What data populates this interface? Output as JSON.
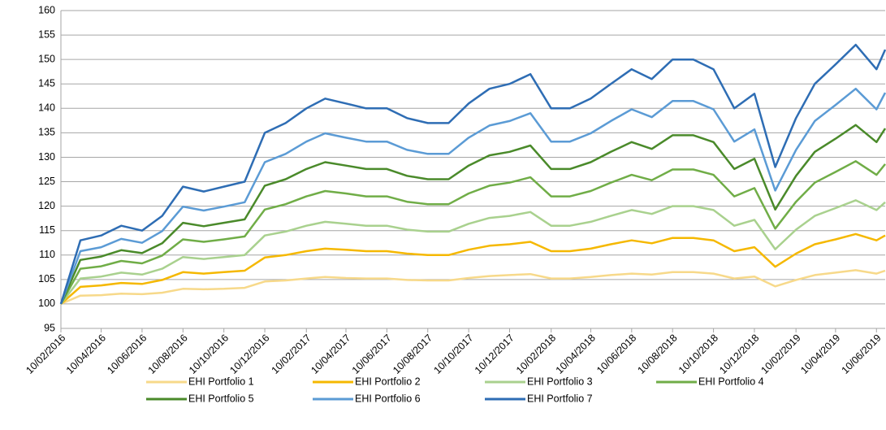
{
  "chart_data": {
    "type": "line",
    "x": [
      "10/02/2016",
      "10/03/2016",
      "10/04/2016",
      "10/05/2016",
      "10/06/2016",
      "10/07/2016",
      "10/08/2016",
      "10/09/2016",
      "10/10/2016",
      "10/11/2016",
      "10/12/2016",
      "10/01/2017",
      "10/02/2017",
      "10/03/2017",
      "10/04/2017",
      "10/05/2017",
      "10/06/2017",
      "10/07/2017",
      "10/08/2017",
      "10/09/2017",
      "10/10/2017",
      "10/11/2017",
      "10/12/2017",
      "10/01/2018",
      "10/02/2018",
      "10/03/2018",
      "10/04/2018",
      "10/05/2018",
      "10/06/2018",
      "10/07/2018",
      "10/08/2018",
      "10/09/2018",
      "10/10/2018",
      "10/11/2018",
      "10/12/2018",
      "10/01/2019",
      "10/02/2019",
      "10/03/2019",
      "10/04/2019",
      "10/05/2019",
      "10/06/2019",
      "23/06/2019"
    ],
    "series": [
      {
        "name": "EHI Portfolio 1",
        "color": "#f7d98a",
        "values": [
          100,
          101.7,
          101.8,
          102.1,
          102,
          102.3,
          103.1,
          103,
          103.1,
          103.3,
          104.6,
          104.8,
          105.2,
          105.5,
          105.3,
          105.2,
          105.2,
          104.9,
          104.8,
          104.8,
          105.3,
          105.7,
          105.9,
          106.1,
          105.2,
          105.2,
          105.5,
          105.9,
          106.2,
          106,
          106.5,
          106.5,
          106.2,
          105.2,
          105.6,
          103.6,
          104.9,
          105.9,
          106.4,
          106.9,
          106.2,
          106.8
        ]
      },
      {
        "name": "EHI Portfolio 2",
        "color": "#f5b800",
        "values": [
          100,
          103.5,
          103.8,
          104.3,
          104.1,
          104.9,
          106.5,
          106.2,
          106.5,
          106.8,
          109.5,
          110,
          110.8,
          111.3,
          111.1,
          110.8,
          110.8,
          110.3,
          110,
          110,
          111.1,
          111.9,
          112.2,
          112.7,
          110.8,
          110.8,
          111.3,
          112.2,
          113,
          112.4,
          113.5,
          113.5,
          113,
          110.8,
          111.6,
          107.6,
          110.3,
          112.2,
          113.2,
          114.3,
          113,
          114
        ]
      },
      {
        "name": "EHI Portfolio 3",
        "color": "#a9d18e",
        "values": [
          100,
          105.2,
          105.6,
          106.4,
          106,
          107.2,
          109.6,
          109.2,
          109.6,
          110,
          114,
          114.8,
          116,
          116.8,
          116.4,
          116,
          116,
          115.2,
          114.8,
          114.8,
          116.4,
          117.6,
          118,
          118.8,
          116,
          116,
          116.8,
          118,
          119.2,
          118.4,
          120,
          120,
          119.2,
          116,
          117.2,
          111.2,
          115.2,
          118,
          119.6,
          121.2,
          119.2,
          120.8
        ]
      },
      {
        "name": "EHI Portfolio 4",
        "color": "#70ad47",
        "values": [
          100,
          107.2,
          107.7,
          108.8,
          108.3,
          109.9,
          113.2,
          112.7,
          113.2,
          113.8,
          119.3,
          120.4,
          122,
          123.1,
          122.6,
          122,
          122,
          120.9,
          120.4,
          120.4,
          122.6,
          124.2,
          124.8,
          125.9,
          122,
          122,
          123.1,
          124.8,
          126.4,
          125.3,
          127.5,
          127.5,
          126.4,
          122,
          123.7,
          115.4,
          120.9,
          124.8,
          127,
          129.2,
          126.4,
          128.6
        ]
      },
      {
        "name": "EHI Portfolio 5",
        "color": "#4a8a2a",
        "values": [
          100,
          109,
          109.7,
          111,
          110.4,
          112.4,
          116.6,
          115.9,
          116.6,
          117.3,
          124.2,
          125.5,
          127.6,
          129,
          128.3,
          127.6,
          127.6,
          126.2,
          125.5,
          125.5,
          128.3,
          130.4,
          131.1,
          132.4,
          127.6,
          127.6,
          129,
          131.1,
          133.1,
          131.7,
          134.5,
          134.5,
          133.1,
          127.6,
          129.7,
          119.3,
          126.2,
          131.1,
          133.8,
          136.6,
          133.1,
          135.9
        ]
      },
      {
        "name": "EHI Portfolio 6",
        "color": "#5b9bd5",
        "values": [
          100,
          110.8,
          111.6,
          113.3,
          112.5,
          114.9,
          119.9,
          119.1,
          119.9,
          120.8,
          129,
          130.7,
          133.2,
          134.9,
          134,
          133.2,
          133.2,
          131.5,
          130.7,
          130.7,
          134,
          136.5,
          137.4,
          139,
          133.2,
          133.2,
          134.9,
          137.4,
          139.8,
          138.2,
          141.5,
          141.5,
          139.8,
          133.2,
          135.7,
          123.2,
          131.5,
          137.4,
          140.7,
          144,
          139.8,
          143.2
        ]
      },
      {
        "name": "EHI Portfolio 7",
        "color": "#2e6db4",
        "values": [
          100,
          113,
          114,
          116,
          115,
          118,
          124,
          123,
          124,
          125,
          135,
          137,
          140,
          142,
          141,
          140,
          140,
          138,
          137,
          137,
          141,
          144,
          145,
          147,
          140,
          140,
          142,
          145,
          148,
          146,
          150,
          150,
          148,
          140,
          143,
          128,
          138,
          145,
          149,
          153,
          148,
          152
        ]
      }
    ],
    "xlim": [
      "10/02/2016",
      "23/06/2019"
    ],
    "xticks": [
      "10/02/2016",
      "10/04/2016",
      "10/06/2016",
      "10/08/2016",
      "10/10/2016",
      "10/12/2016",
      "10/02/2017",
      "10/04/2017",
      "10/06/2017",
      "10/08/2017",
      "10/10/2017",
      "10/12/2017",
      "10/02/2018",
      "10/04/2018",
      "10/06/2018",
      "10/08/2018",
      "10/10/2018",
      "10/12/2018",
      "10/02/2019",
      "10/04/2019",
      "10/06/2019"
    ],
    "ylim": [
      95,
      160
    ],
    "yticks": [
      95,
      100,
      105,
      110,
      115,
      120,
      125,
      130,
      135,
      140,
      145,
      150,
      155,
      160
    ],
    "grid": true
  }
}
